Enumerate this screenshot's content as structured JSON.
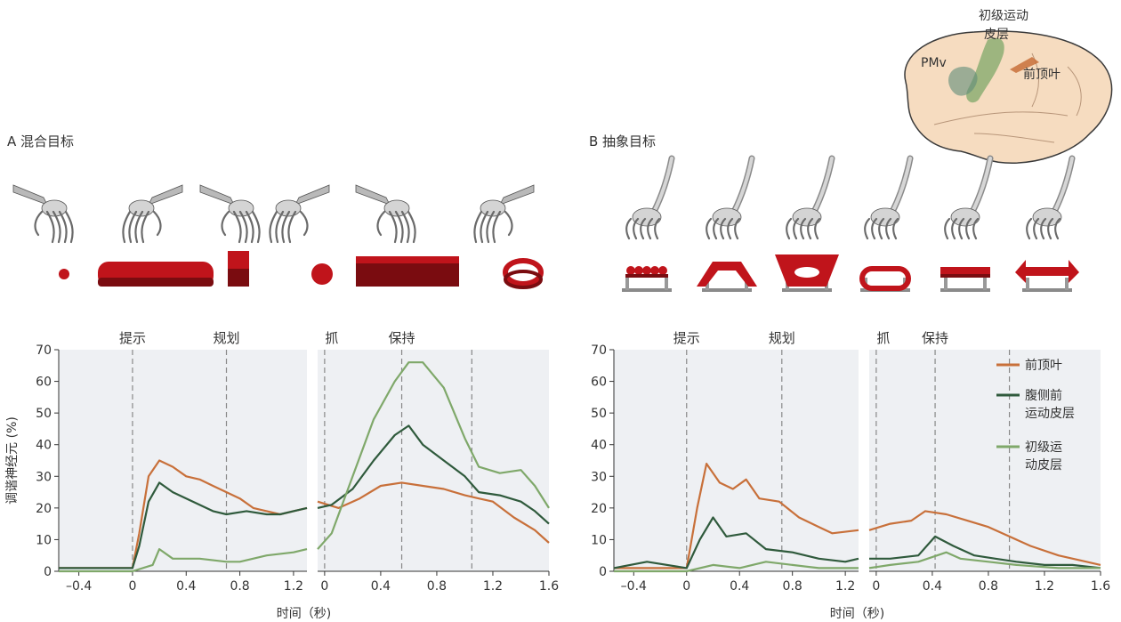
{
  "brain": {
    "label_m1": "初级运动\n皮层",
    "label_pmv": "PMv",
    "label_parietal": "前顶叶"
  },
  "panels": [
    {
      "id": "A",
      "title": "A 混合目标"
    },
    {
      "id": "B",
      "title": "B 抽象目标"
    }
  ],
  "icons": {
    "A": [
      "hand-grip-small-sphere-icon",
      "hand-grip-long-bar-icon",
      "hand-grip-cube-icon",
      "hand-grip-sphere-icon",
      "hand-grip-large-block-icon",
      "hand-grip-ring-icon"
    ],
    "B": [
      "abacus-handle-icon",
      "trapezoid-handle-icon",
      "funnel-handle-icon",
      "oval-loop-handle-icon",
      "bar-handle-icon",
      "arrow-handle-icon"
    ]
  },
  "colors": {
    "parietal": "#c8703a",
    "pmv": "#2f5a3c",
    "m1": "#7fa86a",
    "panel_bg": "#eef0f3"
  },
  "chart_data": [
    {
      "type": "line",
      "panel": "A",
      "ylabel": "调谐神经元 (%)",
      "xlabel": "时间（秒)",
      "ylim": [
        0,
        70
      ],
      "yticks": [
        0,
        10,
        20,
        30,
        40,
        50,
        60,
        70
      ],
      "segments": [
        {
          "xlim": [
            -0.55,
            1.3
          ],
          "ticks": [
            -0.4,
            0,
            0.4,
            0.8,
            1.2
          ],
          "tick_labels": [
            "–0.4",
            "0",
            "0.4",
            "0.8",
            "1.2"
          ]
        },
        {
          "xlim": [
            -0.05,
            1.6
          ],
          "ticks": [
            0,
            0.4,
            0.8,
            1.2,
            1.6
          ],
          "tick_labels": [
            "0",
            "0.4",
            "0.8",
            "1.2",
            "1.6"
          ]
        }
      ],
      "events": [
        {
          "label": "提示",
          "segment": 0,
          "x": 0
        },
        {
          "label": "规划",
          "segment": 0,
          "x": 0.7
        },
        {
          "label": "抓",
          "segment": 1,
          "x": 0
        },
        {
          "label": "保持",
          "segment": 1,
          "x": 0.55
        }
      ],
      "extra_lines": [
        {
          "segment": 1,
          "x": 1.05
        }
      ],
      "series": [
        {
          "name": "前顶叶",
          "color": "#c8703a",
          "seg0": [
            [
              -0.55,
              1
            ],
            [
              -0.05,
              1
            ],
            [
              0.0,
              1
            ],
            [
              0.05,
              12
            ],
            [
              0.12,
              30
            ],
            [
              0.2,
              35
            ],
            [
              0.3,
              33
            ],
            [
              0.4,
              30
            ],
            [
              0.5,
              29
            ],
            [
              0.6,
              27
            ],
            [
              0.7,
              25
            ],
            [
              0.8,
              23
            ],
            [
              0.9,
              20
            ],
            [
              1.0,
              19
            ],
            [
              1.1,
              18
            ],
            [
              1.2,
              19
            ],
            [
              1.3,
              20
            ]
          ],
          "seg1": [
            [
              -0.05,
              22
            ],
            [
              0.1,
              20
            ],
            [
              0.25,
              23
            ],
            [
              0.4,
              27
            ],
            [
              0.55,
              28
            ],
            [
              0.7,
              27
            ],
            [
              0.85,
              26
            ],
            [
              1.0,
              24
            ],
            [
              1.1,
              23
            ],
            [
              1.2,
              22
            ],
            [
              1.35,
              17
            ],
            [
              1.5,
              13
            ],
            [
              1.6,
              9
            ]
          ]
        },
        {
          "name": "腹侧前运动皮层",
          "color": "#2f5a3c",
          "seg0": [
            [
              -0.55,
              1
            ],
            [
              0.0,
              1
            ],
            [
              0.05,
              8
            ],
            [
              0.12,
              22
            ],
            [
              0.2,
              28
            ],
            [
              0.3,
              25
            ],
            [
              0.45,
              22
            ],
            [
              0.6,
              19
            ],
            [
              0.7,
              18
            ],
            [
              0.85,
              19
            ],
            [
              1.0,
              18
            ],
            [
              1.1,
              18
            ],
            [
              1.2,
              19
            ],
            [
              1.3,
              20
            ]
          ],
          "seg1": [
            [
              -0.05,
              20
            ],
            [
              0.05,
              21
            ],
            [
              0.2,
              26
            ],
            [
              0.35,
              35
            ],
            [
              0.5,
              43
            ],
            [
              0.6,
              46
            ],
            [
              0.7,
              40
            ],
            [
              0.85,
              35
            ],
            [
              1.0,
              30
            ],
            [
              1.1,
              25
            ],
            [
              1.25,
              24
            ],
            [
              1.4,
              22
            ],
            [
              1.5,
              19
            ],
            [
              1.6,
              15
            ]
          ]
        },
        {
          "name": "初级运动皮层",
          "color": "#7fa86a",
          "seg0": [
            [
              -0.55,
              0
            ],
            [
              0.0,
              0
            ],
            [
              0.15,
              2
            ],
            [
              0.2,
              7
            ],
            [
              0.3,
              4
            ],
            [
              0.5,
              4
            ],
            [
              0.7,
              3
            ],
            [
              0.8,
              3
            ],
            [
              1.0,
              5
            ],
            [
              1.2,
              6
            ],
            [
              1.3,
              7
            ]
          ],
          "seg1": [
            [
              -0.05,
              7
            ],
            [
              0.05,
              12
            ],
            [
              0.2,
              30
            ],
            [
              0.35,
              48
            ],
            [
              0.5,
              60
            ],
            [
              0.6,
              66
            ],
            [
              0.7,
              66
            ],
            [
              0.85,
              58
            ],
            [
              1.0,
              42
            ],
            [
              1.1,
              33
            ],
            [
              1.25,
              31
            ],
            [
              1.4,
              32
            ],
            [
              1.5,
              27
            ],
            [
              1.6,
              20
            ]
          ]
        }
      ]
    },
    {
      "type": "line",
      "panel": "B",
      "ylabel": "",
      "xlabel": "时间（秒)",
      "ylim": [
        0,
        70
      ],
      "yticks": [
        0,
        10,
        20,
        30,
        40,
        50,
        60,
        70
      ],
      "segments": [
        {
          "xlim": [
            -0.55,
            1.3
          ],
          "ticks": [
            -0.4,
            0,
            0.4,
            0.8,
            1.2
          ],
          "tick_labels": [
            "–0.4",
            "0",
            "0.4",
            "0.8",
            "1.2"
          ]
        },
        {
          "xlim": [
            -0.05,
            1.6
          ],
          "ticks": [
            0,
            0.4,
            0.8,
            1.2,
            1.6
          ],
          "tick_labels": [
            "0",
            "0.4",
            "0.8",
            "1.2",
            "1.6"
          ]
        }
      ],
      "events": [
        {
          "label": "提示",
          "segment": 0,
          "x": 0
        },
        {
          "label": "规划",
          "segment": 0,
          "x": 0.72
        },
        {
          "label": "抓",
          "segment": 1,
          "x": 0
        },
        {
          "label": "保持",
          "segment": 1,
          "x": 0.42
        }
      ],
      "extra_lines": [
        {
          "segment": 1,
          "x": 0.95
        }
      ],
      "legend": [
        "前顶叶",
        "腹侧前\n运动皮层",
        "初级运\n动皮层"
      ],
      "series": [
        {
          "name": "前顶叶",
          "color": "#c8703a",
          "seg0": [
            [
              -0.55,
              1
            ],
            [
              0.0,
              1
            ],
            [
              0.08,
              20
            ],
            [
              0.15,
              34
            ],
            [
              0.25,
              28
            ],
            [
              0.35,
              26
            ],
            [
              0.45,
              29
            ],
            [
              0.55,
              23
            ],
            [
              0.7,
              22
            ],
            [
              0.85,
              17
            ],
            [
              1.0,
              14
            ],
            [
              1.1,
              12
            ],
            [
              1.3,
              13
            ]
          ],
          "seg1": [
            [
              -0.05,
              13
            ],
            [
              0.1,
              15
            ],
            [
              0.25,
              16
            ],
            [
              0.35,
              19
            ],
            [
              0.5,
              18
            ],
            [
              0.65,
              16
            ],
            [
              0.8,
              14
            ],
            [
              0.95,
              11
            ],
            [
              1.1,
              8
            ],
            [
              1.3,
              5
            ],
            [
              1.5,
              3
            ],
            [
              1.6,
              2
            ]
          ]
        },
        {
          "name": "腹侧前运动皮层",
          "color": "#2f5a3c",
          "seg0": [
            [
              -0.55,
              1
            ],
            [
              -0.3,
              3
            ],
            [
              0.0,
              1
            ],
            [
              0.1,
              10
            ],
            [
              0.2,
              17
            ],
            [
              0.3,
              11
            ],
            [
              0.45,
              12
            ],
            [
              0.6,
              7
            ],
            [
              0.8,
              6
            ],
            [
              1.0,
              4
            ],
            [
              1.2,
              3
            ],
            [
              1.3,
              4
            ]
          ],
          "seg1": [
            [
              -0.05,
              4
            ],
            [
              0.1,
              4
            ],
            [
              0.3,
              5
            ],
            [
              0.42,
              11
            ],
            [
              0.55,
              8
            ],
            [
              0.7,
              5
            ],
            [
              0.85,
              4
            ],
            [
              1.0,
              3
            ],
            [
              1.2,
              2
            ],
            [
              1.4,
              2
            ],
            [
              1.6,
              1
            ]
          ]
        },
        {
          "name": "初级运动皮层",
          "color": "#7fa86a",
          "seg0": [
            [
              -0.55,
              0
            ],
            [
              0.0,
              0
            ],
            [
              0.2,
              2
            ],
            [
              0.4,
              1
            ],
            [
              0.6,
              3
            ],
            [
              0.8,
              2
            ],
            [
              1.0,
              1
            ],
            [
              1.3,
              1
            ]
          ],
          "seg1": [
            [
              -0.05,
              1
            ],
            [
              0.1,
              2
            ],
            [
              0.3,
              3
            ],
            [
              0.5,
              6
            ],
            [
              0.6,
              4
            ],
            [
              0.8,
              3
            ],
            [
              1.0,
              2
            ],
            [
              1.3,
              1
            ],
            [
              1.6,
              1
            ]
          ]
        }
      ]
    }
  ]
}
